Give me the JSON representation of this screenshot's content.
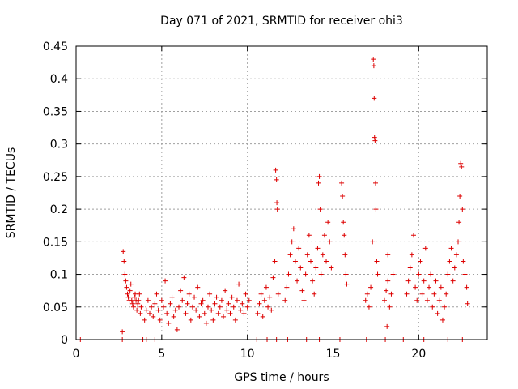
{
  "chart_data": {
    "type": "scatter",
    "title": "Day 071 of 2021, SRMTID for receiver ohi3",
    "xlabel": "GPS time / hours",
    "ylabel": "SRMTID / TECUs",
    "xlim": [
      0,
      24
    ],
    "ylim": [
      0,
      0.45
    ],
    "xticks": [
      0,
      5,
      10,
      15,
      20
    ],
    "xtick_labels": [
      "0",
      "5",
      "10",
      "15",
      "20"
    ],
    "yticks": [
      0,
      0.05,
      0.1,
      0.15,
      0.2,
      0.25,
      0.3,
      0.35,
      0.4,
      0.45
    ],
    "ytick_labels": [
      "0",
      "0.05",
      "0.1",
      "0.15",
      "0.2",
      "0.25",
      "0.3",
      "0.35",
      "0.4",
      "0.45"
    ],
    "grid": true,
    "marker": "+",
    "color": "#dd0000",
    "series": [
      {
        "name": "SRMTID",
        "points": [
          [
            0.25,
            0
          ],
          [
            2.7,
            0
          ],
          [
            3.9,
            0
          ],
          [
            4.1,
            0
          ],
          [
            4.6,
            0
          ],
          [
            10.55,
            0
          ],
          [
            11.15,
            0
          ],
          [
            11.7,
            0
          ],
          [
            12.35,
            0
          ],
          [
            13.45,
            0
          ],
          [
            14.2,
            0
          ],
          [
            15.4,
            0
          ],
          [
            16.95,
            0
          ],
          [
            18.05,
            0
          ],
          [
            19.1,
            0
          ],
          [
            20.3,
            0
          ],
          [
            21.7,
            0
          ],
          [
            22.55,
            0
          ],
          [
            2.7,
            0.012
          ],
          [
            2.75,
            0.135
          ],
          [
            2.8,
            0.12
          ],
          [
            2.85,
            0.1
          ],
          [
            2.9,
            0.09
          ],
          [
            2.95,
            0.08
          ],
          [
            3.0,
            0.07
          ],
          [
            3.05,
            0.065
          ],
          [
            3.1,
            0.06
          ],
          [
            3.15,
            0.075
          ],
          [
            3.2,
            0.085
          ],
          [
            3.25,
            0.06
          ],
          [
            3.3,
            0.055
          ],
          [
            3.35,
            0.05
          ],
          [
            3.4,
            0.065
          ],
          [
            3.45,
            0.07
          ],
          [
            3.5,
            0.06
          ],
          [
            3.55,
            0.045
          ],
          [
            3.6,
            0.055
          ],
          [
            3.65,
            0.06
          ],
          [
            3.7,
            0.07
          ],
          [
            3.75,
            0.04
          ],
          [
            3.8,
            0.05
          ],
          [
            4.0,
            0.03
          ],
          [
            4.1,
            0.045
          ],
          [
            4.2,
            0.06
          ],
          [
            4.3,
            0.04
          ],
          [
            4.4,
            0.05
          ],
          [
            4.5,
            0.035
          ],
          [
            4.6,
            0.055
          ],
          [
            4.7,
            0.07
          ],
          [
            4.8,
            0.045
          ],
          [
            4.9,
            0.03
          ],
          [
            5.0,
            0.06
          ],
          [
            5.1,
            0.05
          ],
          [
            5.2,
            0.09
          ],
          [
            5.3,
            0.04
          ],
          [
            5.4,
            0.025
          ],
          [
            5.5,
            0.055
          ],
          [
            5.6,
            0.065
          ],
          [
            5.7,
            0.035
          ],
          [
            5.8,
            0.045
          ],
          [
            5.9,
            0.015
          ],
          [
            6.0,
            0.05
          ],
          [
            6.1,
            0.075
          ],
          [
            6.2,
            0.06
          ],
          [
            6.3,
            0.095
          ],
          [
            6.4,
            0.04
          ],
          [
            6.5,
            0.055
          ],
          [
            6.6,
            0.07
          ],
          [
            6.7,
            0.03
          ],
          [
            6.8,
            0.05
          ],
          [
            6.9,
            0.065
          ],
          [
            7.0,
            0.045
          ],
          [
            7.1,
            0.08
          ],
          [
            7.2,
            0.035
          ],
          [
            7.3,
            0.055
          ],
          [
            7.4,
            0.06
          ],
          [
            7.5,
            0.04
          ],
          [
            7.6,
            0.025
          ],
          [
            7.7,
            0.05
          ],
          [
            7.8,
            0.07
          ],
          [
            7.9,
            0.045
          ],
          [
            8.0,
            0.03
          ],
          [
            8.1,
            0.055
          ],
          [
            8.2,
            0.065
          ],
          [
            8.3,
            0.04
          ],
          [
            8.4,
            0.05
          ],
          [
            8.5,
            0.06
          ],
          [
            8.6,
            0.035
          ],
          [
            8.7,
            0.075
          ],
          [
            8.8,
            0.045
          ],
          [
            8.9,
            0.055
          ],
          [
            9.0,
            0.04
          ],
          [
            9.1,
            0.065
          ],
          [
            9.2,
            0.05
          ],
          [
            9.3,
            0.03
          ],
          [
            9.4,
            0.06
          ],
          [
            9.5,
            0.085
          ],
          [
            9.6,
            0.045
          ],
          [
            9.7,
            0.055
          ],
          [
            9.8,
            0.04
          ],
          [
            9.9,
            0.07
          ],
          [
            10.0,
            0.05
          ],
          [
            10.1,
            0.06
          ],
          [
            10.6,
            0.04
          ],
          [
            10.7,
            0.055
          ],
          [
            10.8,
            0.07
          ],
          [
            10.9,
            0.035
          ],
          [
            11.0,
            0.06
          ],
          [
            11.1,
            0.08
          ],
          [
            11.2,
            0.05
          ],
          [
            11.3,
            0.065
          ],
          [
            11.4,
            0.045
          ],
          [
            11.5,
            0.095
          ],
          [
            11.6,
            0.12
          ],
          [
            11.65,
            0.26
          ],
          [
            11.7,
            0.245
          ],
          [
            11.72,
            0.21
          ],
          [
            11.75,
            0.2
          ],
          [
            11.8,
            0.07
          ],
          [
            12.2,
            0.06
          ],
          [
            12.3,
            0.08
          ],
          [
            12.4,
            0.1
          ],
          [
            12.5,
            0.13
          ],
          [
            12.6,
            0.15
          ],
          [
            12.7,
            0.17
          ],
          [
            12.8,
            0.12
          ],
          [
            12.9,
            0.09
          ],
          [
            13.0,
            0.14
          ],
          [
            13.1,
            0.11
          ],
          [
            13.2,
            0.075
          ],
          [
            13.3,
            0.06
          ],
          [
            13.4,
            0.1
          ],
          [
            13.5,
            0.13
          ],
          [
            13.6,
            0.16
          ],
          [
            13.7,
            0.12
          ],
          [
            13.8,
            0.09
          ],
          [
            13.9,
            0.07
          ],
          [
            14.0,
            0.11
          ],
          [
            14.1,
            0.14
          ],
          [
            14.15,
            0.24
          ],
          [
            14.2,
            0.25
          ],
          [
            14.25,
            0.2
          ],
          [
            14.3,
            0.1
          ],
          [
            14.4,
            0.13
          ],
          [
            14.5,
            0.16
          ],
          [
            14.6,
            0.12
          ],
          [
            14.7,
            0.18
          ],
          [
            14.8,
            0.15
          ],
          [
            14.9,
            0.11
          ],
          [
            15.5,
            0.24
          ],
          [
            15.55,
            0.22
          ],
          [
            15.6,
            0.18
          ],
          [
            15.65,
            0.16
          ],
          [
            15.7,
            0.13
          ],
          [
            15.75,
            0.1
          ],
          [
            15.8,
            0.085
          ],
          [
            16.9,
            0.06
          ],
          [
            17.0,
            0.07
          ],
          [
            17.1,
            0.05
          ],
          [
            17.2,
            0.08
          ],
          [
            17.3,
            0.15
          ],
          [
            17.35,
            0.43
          ],
          [
            17.38,
            0.42
          ],
          [
            17.4,
            0.37
          ],
          [
            17.42,
            0.31
          ],
          [
            17.45,
            0.305
          ],
          [
            17.48,
            0.24
          ],
          [
            17.5,
            0.2
          ],
          [
            17.55,
            0.12
          ],
          [
            17.6,
            0.1
          ],
          [
            18.0,
            0.06
          ],
          [
            18.1,
            0.075
          ],
          [
            18.2,
            0.09
          ],
          [
            18.3,
            0.05
          ],
          [
            18.4,
            0.07
          ],
          [
            18.5,
            0.1
          ],
          [
            18.15,
            0.02
          ],
          [
            18.2,
            0.13
          ],
          [
            19.3,
            0.07
          ],
          [
            19.4,
            0.09
          ],
          [
            19.5,
            0.11
          ],
          [
            19.6,
            0.13
          ],
          [
            19.7,
            0.16
          ],
          [
            19.8,
            0.08
          ],
          [
            19.9,
            0.06
          ],
          [
            20.0,
            0.1
          ],
          [
            20.1,
            0.12
          ],
          [
            20.2,
            0.07
          ],
          [
            20.3,
            0.09
          ],
          [
            20.4,
            0.14
          ],
          [
            20.5,
            0.06
          ],
          [
            20.6,
            0.08
          ],
          [
            20.7,
            0.1
          ],
          [
            20.8,
            0.05
          ],
          [
            20.9,
            0.07
          ],
          [
            21.0,
            0.09
          ],
          [
            21.1,
            0.04
          ],
          [
            21.2,
            0.06
          ],
          [
            21.3,
            0.08
          ],
          [
            21.4,
            0.03
          ],
          [
            21.5,
            0.05
          ],
          [
            21.6,
            0.07
          ],
          [
            21.7,
            0.1
          ],
          [
            21.8,
            0.12
          ],
          [
            21.9,
            0.14
          ],
          [
            22.0,
            0.09
          ],
          [
            22.1,
            0.11
          ],
          [
            22.2,
            0.13
          ],
          [
            22.3,
            0.15
          ],
          [
            22.35,
            0.18
          ],
          [
            22.4,
            0.22
          ],
          [
            22.45,
            0.27
          ],
          [
            22.5,
            0.265
          ],
          [
            22.55,
            0.2
          ],
          [
            22.6,
            0.12
          ],
          [
            22.7,
            0.1
          ],
          [
            22.8,
            0.08
          ],
          [
            22.85,
            0.055
          ]
        ]
      }
    ]
  }
}
